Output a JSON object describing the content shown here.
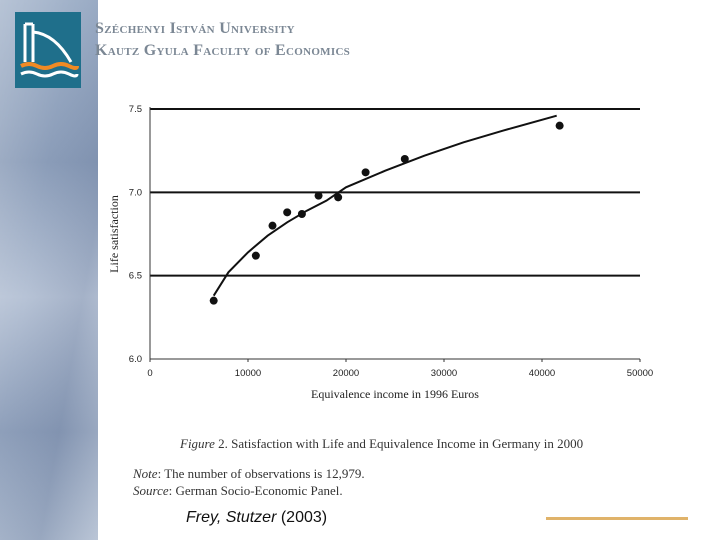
{
  "header": {
    "university": "Széchenyi István University",
    "faculty": "Kautz Gyula Faculty of Economics"
  },
  "figure": {
    "caption_label": "Figure",
    "caption_text": "2. Satisfaction with Life and Equivalence Income in Germany in 2000",
    "note_label": "Note",
    "note_text": ": The number of observations is 12,979.",
    "source_label": "Source",
    "source_text": ": German Socio-Economic Panel."
  },
  "citation": {
    "authors": "Frey, Stutzer",
    "year": "(2003)"
  },
  "colors": {
    "accent": "#e0b36a",
    "logo": "#1f6f8b",
    "header_text": "#7b8794"
  },
  "chart_data": {
    "type": "scatter",
    "title": "",
    "xlabel": "Equivalence income in 1996 Euros",
    "ylabel": "Life satisfaction",
    "xlim": [
      0,
      50000
    ],
    "ylim": [
      6.0,
      7.5
    ],
    "x_ticks": [
      0,
      10000,
      20000,
      30000,
      40000,
      50000
    ],
    "x_tick_labels": [
      "0",
      "10000",
      "20000",
      "30000",
      "40000",
      "50000"
    ],
    "y_ticks": [
      6.0,
      6.5,
      7.0,
      7.5
    ],
    "y_tick_labels": [
      "6.0",
      "6.5",
      "7.0",
      "7.5"
    ],
    "grid": "horizontal",
    "legend": "none",
    "series": [
      {
        "x": [
          6500,
          10800,
          12500,
          14000,
          15500,
          17200,
          19200,
          22000,
          26000,
          41800
        ],
        "y": [
          6.35,
          6.62,
          6.8,
          6.88,
          6.87,
          6.98,
          6.97,
          7.12,
          7.2,
          7.4
        ]
      }
    ],
    "fit_curve": {
      "x": [
        6500,
        8000,
        10000,
        12000,
        14000,
        16000,
        18000,
        20000,
        24000,
        28000,
        32000,
        36000,
        41500
      ],
      "y": [
        6.38,
        6.52,
        6.64,
        6.74,
        6.82,
        6.89,
        6.95,
        7.03,
        7.13,
        7.22,
        7.3,
        7.37,
        7.46
      ]
    }
  }
}
